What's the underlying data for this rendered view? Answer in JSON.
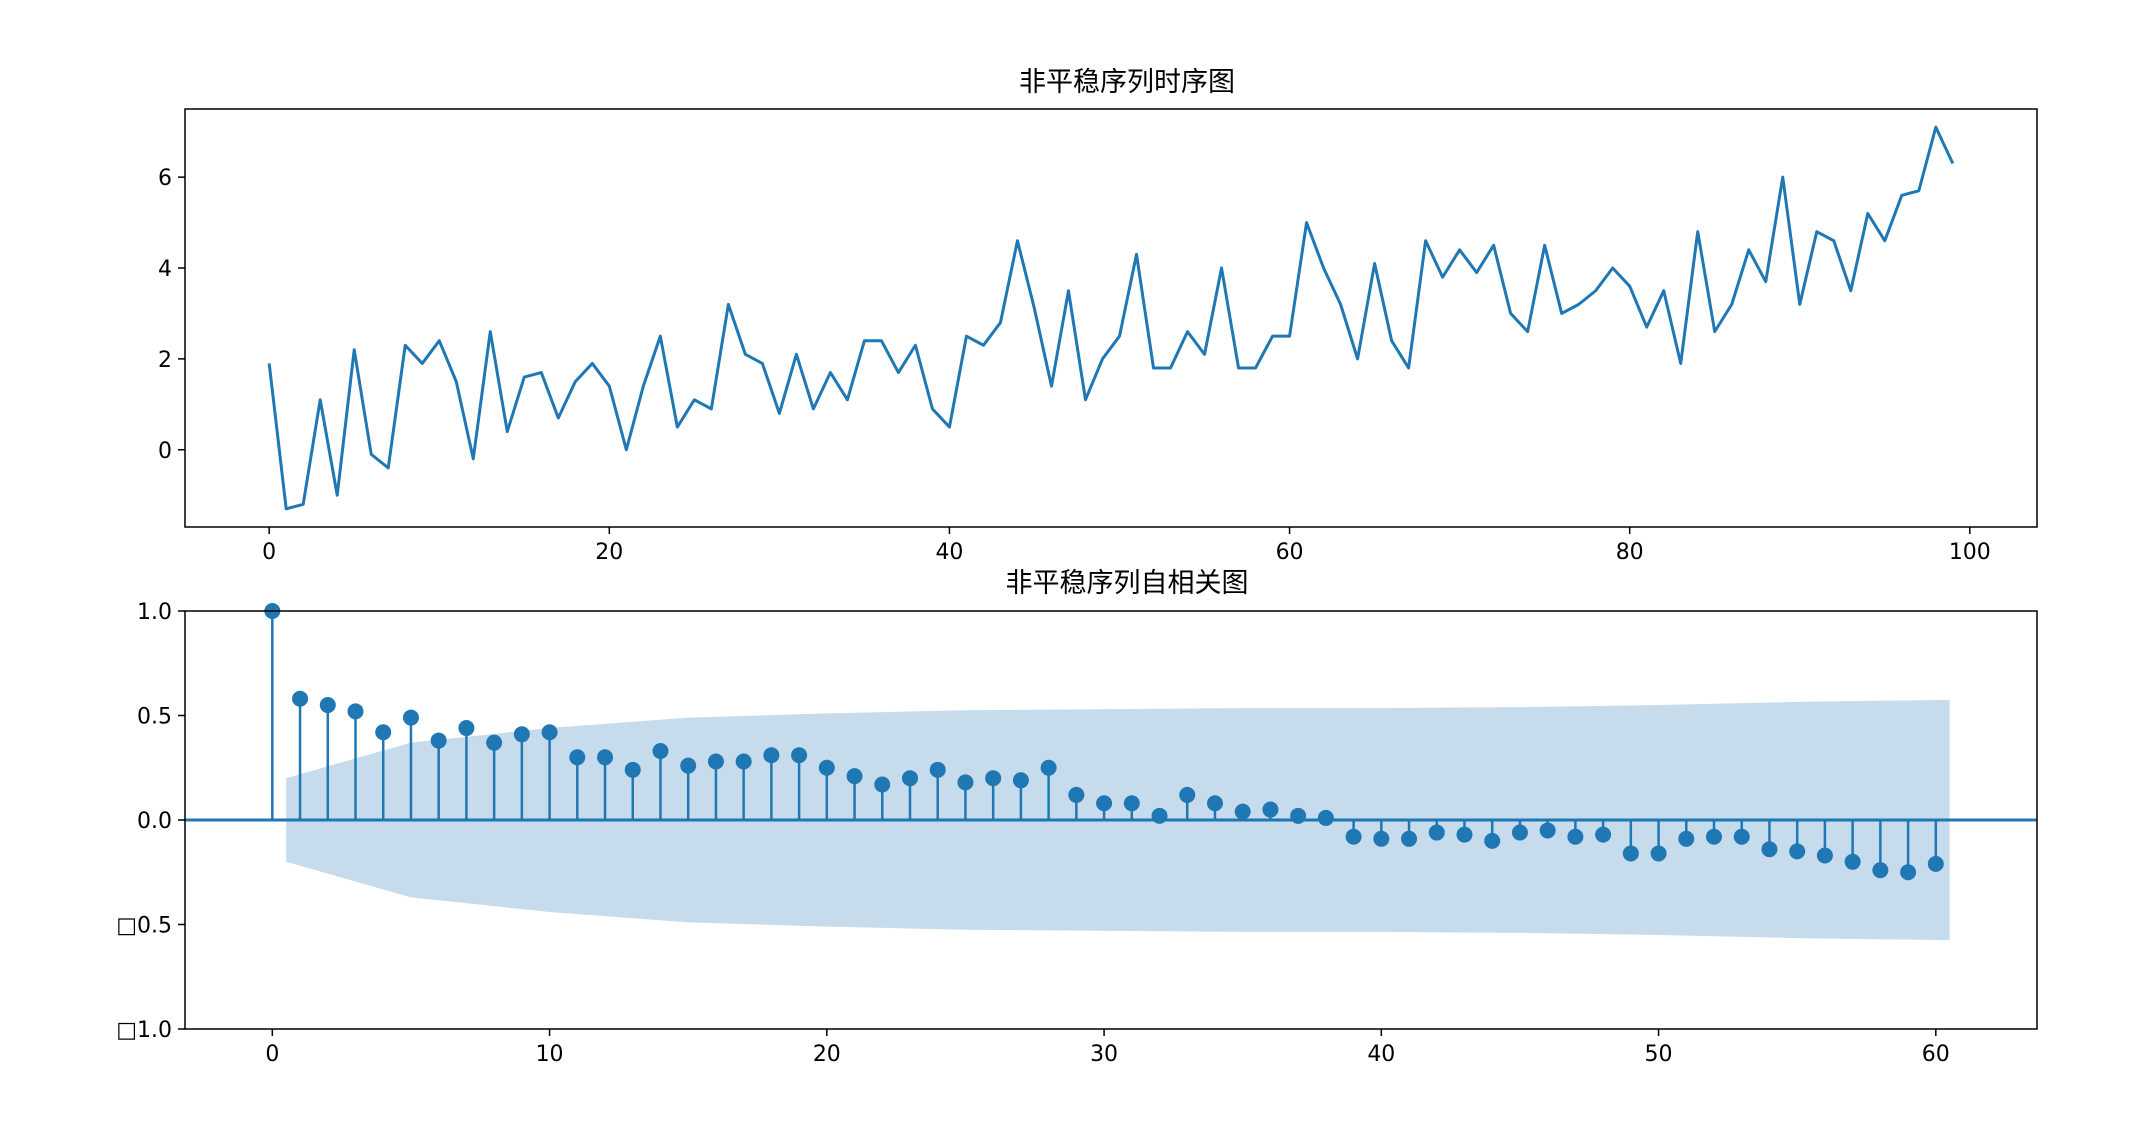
{
  "chart_data": [
    {
      "type": "line",
      "title": "非平稳序列时序图",
      "xlim": [
        -4.95,
        103.95
      ],
      "ylim": [
        -1.7,
        7.5
      ],
      "xticks": [
        0,
        20,
        40,
        60,
        80,
        100
      ],
      "xtick_labels": [
        "0",
        "20",
        "40",
        "60",
        "80",
        "100"
      ],
      "yticks": [
        0,
        2,
        4,
        6
      ],
      "ytick_labels": [
        "0",
        "2",
        "4",
        "6"
      ],
      "grid": false,
      "color": "#1f77b4",
      "series": [
        {
          "x": [
            0,
            1,
            2,
            3,
            4,
            5,
            6,
            7,
            8,
            9,
            10,
            11,
            12,
            13,
            14,
            15,
            16,
            17,
            18,
            19,
            20,
            21,
            22,
            23,
            24,
            25,
            26,
            27,
            28,
            29,
            30,
            31,
            32,
            33,
            34,
            35,
            36,
            37,
            38,
            39,
            40,
            41,
            42,
            43,
            44,
            45,
            46,
            47,
            48,
            49,
            50,
            51,
            52,
            53,
            54,
            55,
            56,
            57,
            58,
            59,
            60,
            61,
            62,
            63,
            64,
            65,
            66,
            67,
            68,
            69,
            70,
            71,
            72,
            73,
            74,
            75,
            76,
            77,
            78,
            79,
            80,
            81,
            82,
            83,
            84,
            85,
            86,
            87,
            88,
            89,
            90,
            91,
            92,
            93,
            94,
            95,
            96,
            97,
            98,
            99
          ],
          "values": [
            1.9,
            -1.3,
            -1.2,
            1.1,
            -1.0,
            2.2,
            -0.1,
            -0.4,
            2.3,
            1.9,
            2.4,
            1.5,
            -0.2,
            2.6,
            0.4,
            1.6,
            1.7,
            0.7,
            1.5,
            1.9,
            1.4,
            0.0,
            1.4,
            2.5,
            0.5,
            1.1,
            0.9,
            3.2,
            2.1,
            1.9,
            0.8,
            2.1,
            0.9,
            1.7,
            1.1,
            2.4,
            2.4,
            1.7,
            2.3,
            0.9,
            0.5,
            2.5,
            2.3,
            2.8,
            4.6,
            3.1,
            1.4,
            3.5,
            1.1,
            2.0,
            2.5,
            4.3,
            1.8,
            1.8,
            2.6,
            2.1,
            4.0,
            1.8,
            1.8,
            2.5,
            2.5,
            5.0,
            4.0,
            3.2,
            2.0,
            4.1,
            2.4,
            1.8,
            4.6,
            3.8,
            4.4,
            3.9,
            4.5,
            3.0,
            2.6,
            4.5,
            3.0,
            3.2,
            3.5,
            4.0,
            3.6,
            2.7,
            3.5,
            1.9,
            4.8,
            2.6,
            3.2,
            4.4,
            3.7,
            6.0,
            3.2,
            4.8,
            4.6,
            3.5,
            5.2,
            4.6,
            5.6,
            5.7,
            7.1,
            6.3
          ]
        }
      ]
    },
    {
      "type": "stem",
      "title": "非平稳序列自相关图",
      "xlim": [
        -3.15,
        63.65
      ],
      "ylim": [
        -1.0,
        1.0
      ],
      "xticks": [
        0,
        10,
        20,
        30,
        40,
        50,
        60
      ],
      "xtick_labels": [
        "0",
        "10",
        "20",
        "30",
        "40",
        "50",
        "60"
      ],
      "yticks": [
        1.0,
        0.5,
        0.0,
        -0.5,
        -1.0
      ],
      "ytick_labels": [
        "1.0",
        "0.5",
        "0.0",
        "□0.5",
        "□1.0"
      ],
      "grid": false,
      "color": "#1f77b4",
      "band_color": "#c6dbec",
      "lags": [
        0,
        1,
        2,
        3,
        4,
        5,
        6,
        7,
        8,
        9,
        10,
        11,
        12,
        13,
        14,
        15,
        16,
        17,
        18,
        19,
        20,
        21,
        22,
        23,
        24,
        25,
        26,
        27,
        28,
        29,
        30,
        31,
        32,
        33,
        34,
        35,
        36,
        37,
        38,
        39,
        40,
        41,
        42,
        43,
        44,
        45,
        46,
        47,
        48,
        49,
        50,
        51,
        52,
        53,
        54,
        55,
        56,
        57,
        58,
        59,
        60
      ],
      "acf": [
        1.0,
        0.58,
        0.55,
        0.52,
        0.42,
        0.49,
        0.38,
        0.44,
        0.37,
        0.41,
        0.42,
        0.3,
        0.3,
        0.24,
        0.33,
        0.26,
        0.28,
        0.28,
        0.31,
        0.31,
        0.25,
        0.21,
        0.17,
        0.2,
        0.24,
        0.18,
        0.2,
        0.19,
        0.25,
        0.12,
        0.08,
        0.08,
        0.02,
        0.12,
        0.08,
        0.04,
        0.05,
        0.02,
        0.01,
        -0.08,
        -0.09,
        -0.09,
        -0.06,
        -0.07,
        -0.1,
        -0.06,
        -0.05,
        -0.08,
        -0.07,
        -0.16,
        -0.16,
        -0.09,
        -0.08,
        -0.08,
        -0.14,
        -0.15,
        -0.17,
        -0.2,
        -0.24,
        -0.25,
        -0.21
      ],
      "confidence_band": {
        "x": [
          0.5,
          5,
          10,
          15,
          20,
          25,
          30,
          35,
          40,
          45,
          50,
          55,
          60.5
        ],
        "upper": [
          0.2,
          0.37,
          0.44,
          0.49,
          0.51,
          0.525,
          0.53,
          0.535,
          0.535,
          0.54,
          0.55,
          0.565,
          0.575
        ],
        "lower": [
          -0.2,
          -0.37,
          -0.44,
          -0.49,
          -0.51,
          -0.525,
          -0.53,
          -0.535,
          -0.535,
          -0.54,
          -0.55,
          -0.565,
          -0.575
        ]
      }
    }
  ]
}
